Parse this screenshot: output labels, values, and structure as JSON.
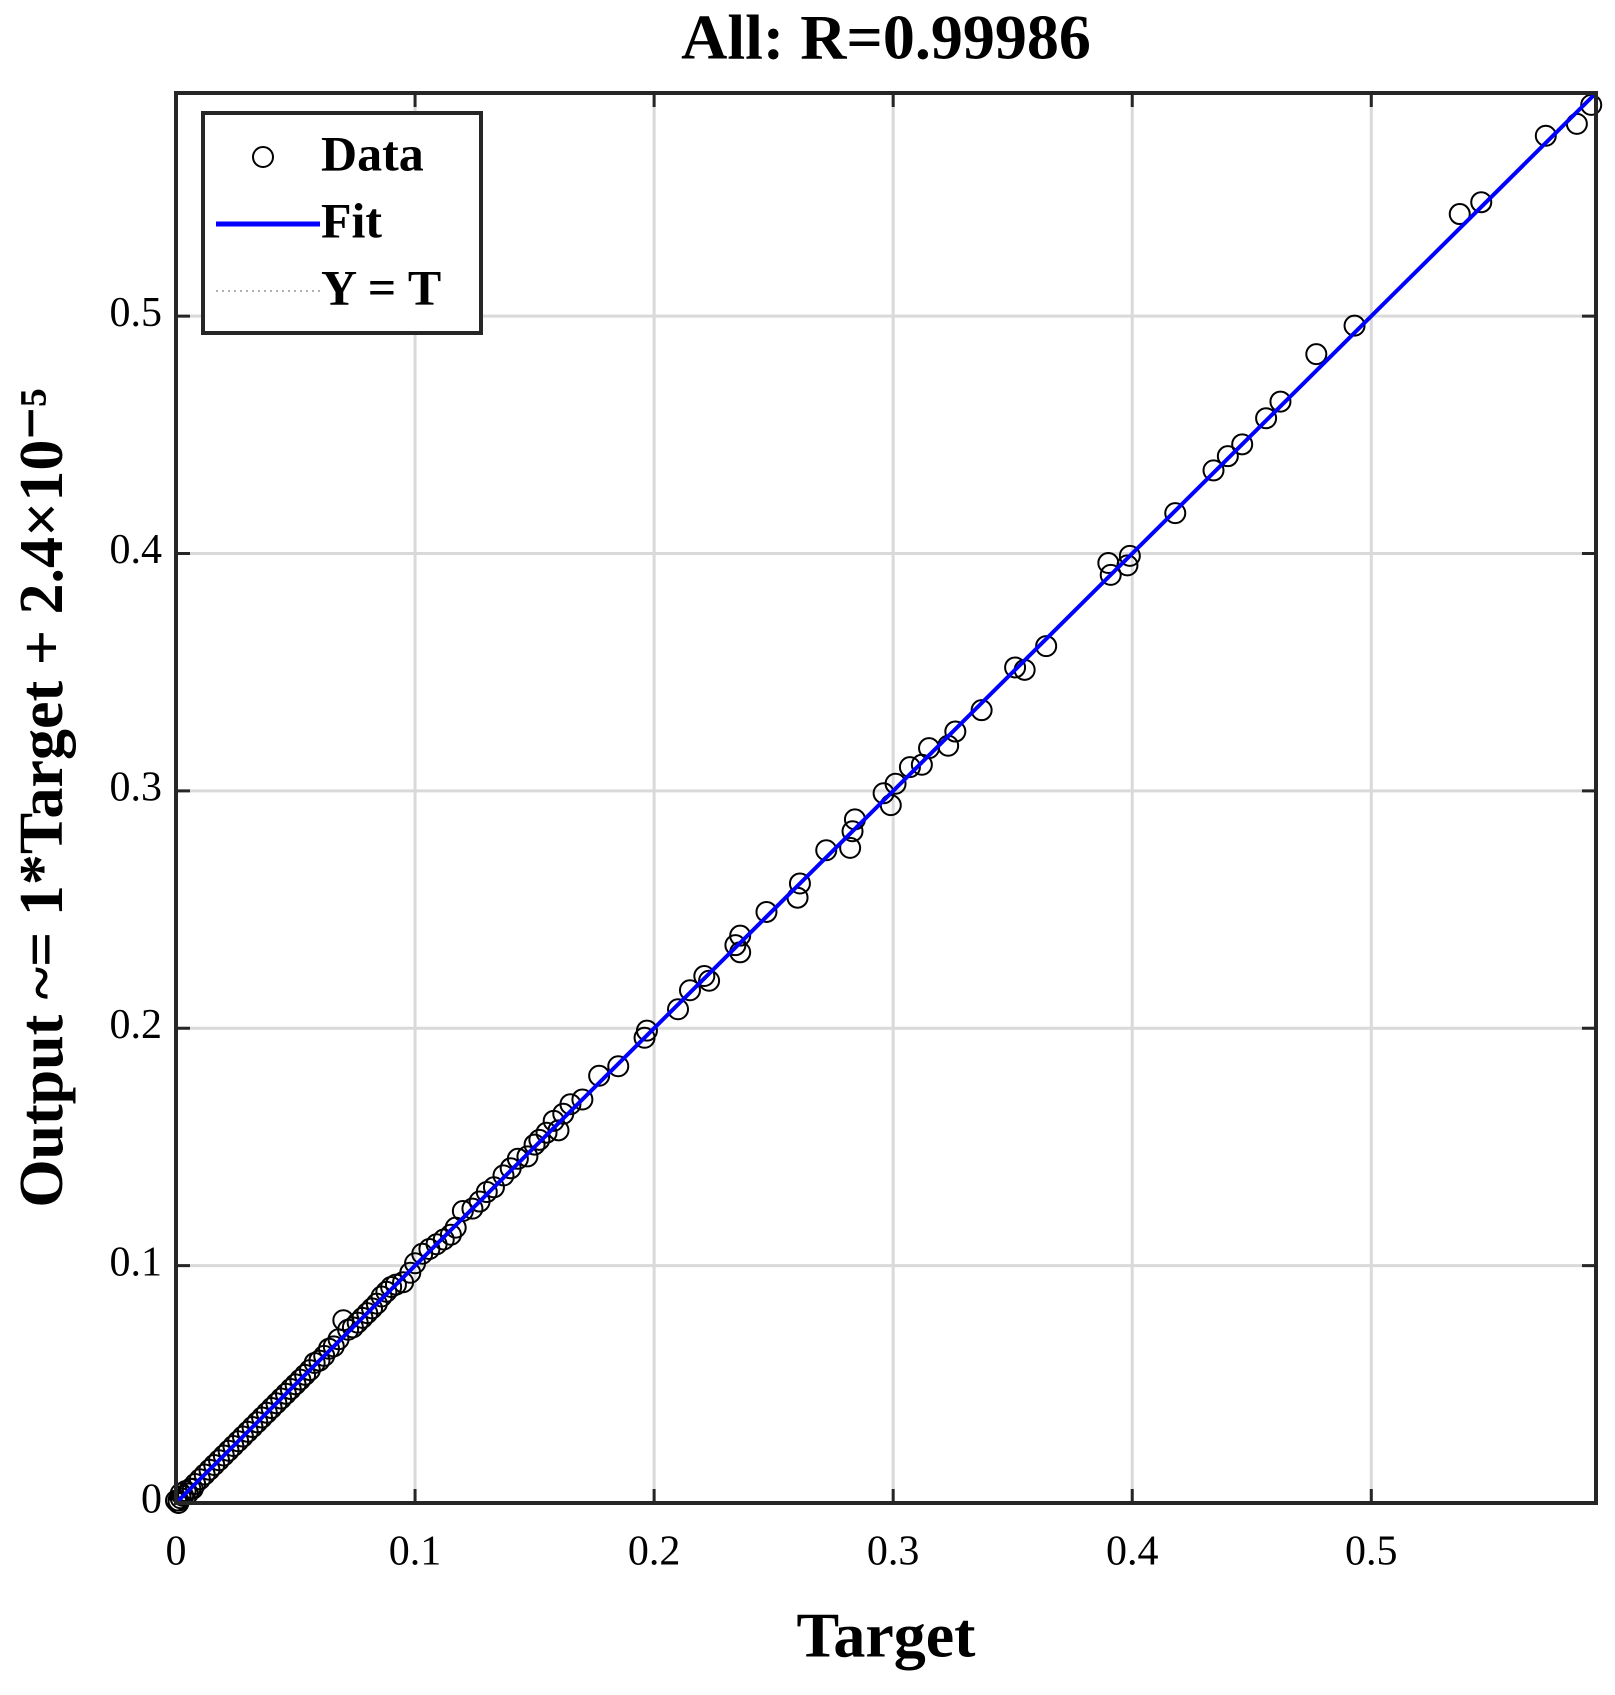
{
  "chart_data": {
    "type": "scatter",
    "title": "All: R=0.99986",
    "xlabel": "Target",
    "ylabel": "Output ~= 1*Target + 2.4×10⁻⁵",
    "xlim": [
      0,
      0.594
    ],
    "ylim": [
      0,
      0.594
    ],
    "xticks": [
      0,
      0.1,
      0.2,
      0.3,
      0.4,
      0.5
    ],
    "yticks": [
      0,
      0.1,
      0.2,
      0.3,
      0.4,
      0.5
    ],
    "grid": true,
    "legend": "upper-left",
    "series": [
      {
        "name": "Data",
        "color": "#000000",
        "style": "marker",
        "x": [
          0.592,
          0.586,
          0.573,
          0.546,
          0.537,
          0.493,
          0.477,
          0.462,
          0.456,
          0.446,
          0.44,
          0.434,
          0.418,
          0.399,
          0.398,
          0.391,
          0.39,
          0.364,
          0.355,
          0.351,
          0.337,
          0.326,
          0.323,
          0.315,
          0.312,
          0.307,
          0.301,
          0.299,
          0.296,
          0.284,
          0.283,
          0.282,
          0.272,
          0.261,
          0.26,
          0.247,
          0.236,
          0.236,
          0.234,
          0.223,
          0.221,
          0.215,
          0.21,
          0.197,
          0.196,
          0.185,
          0.177,
          0.17,
          0.165,
          0.162,
          0.16,
          0.158,
          0.155,
          0.152,
          0.15,
          0.147,
          0.143,
          0.14,
          0.137,
          0.133,
          0.13,
          0.127,
          0.124,
          0.12,
          0.117,
          0.115,
          0.112,
          0.109,
          0.106,
          0.103,
          0.1,
          0.098,
          0.095,
          0.092,
          0.09,
          0.088,
          0.086,
          0.084,
          0.082,
          0.08,
          0.078,
          0.076,
          0.074,
          0.072,
          0.07,
          0.068,
          0.066,
          0.064,
          0.062,
          0.06,
          0.058,
          0.056,
          0.054,
          0.052,
          0.05,
          0.048,
          0.046,
          0.044,
          0.042,
          0.04,
          0.038,
          0.036,
          0.034,
          0.032,
          0.03,
          0.028,
          0.026,
          0.024,
          0.022,
          0.02,
          0.018,
          0.016,
          0.014,
          0.012,
          0.01,
          0.008,
          0.006,
          0.004,
          0.003,
          0.002,
          0.001,
          0,
          0.001,
          0.002,
          0.005,
          0.007
        ],
        "values": [
          0.589,
          0.581,
          0.576,
          0.548,
          0.543,
          0.496,
          0.484,
          0.464,
          0.457,
          0.446,
          0.441,
          0.435,
          0.417,
          0.399,
          0.395,
          0.391,
          0.396,
          0.361,
          0.351,
          0.352,
          0.334,
          0.325,
          0.319,
          0.318,
          0.311,
          0.31,
          0.303,
          0.294,
          0.299,
          0.288,
          0.283,
          0.276,
          0.275,
          0.261,
          0.255,
          0.249,
          0.239,
          0.232,
          0.235,
          0.22,
          0.222,
          0.216,
          0.208,
          0.199,
          0.196,
          0.184,
          0.18,
          0.17,
          0.168,
          0.164,
          0.157,
          0.161,
          0.156,
          0.153,
          0.151,
          0.146,
          0.145,
          0.141,
          0.138,
          0.133,
          0.131,
          0.127,
          0.124,
          0.123,
          0.116,
          0.113,
          0.111,
          0.109,
          0.107,
          0.105,
          0.101,
          0.097,
          0.093,
          0.092,
          0.091,
          0.089,
          0.087,
          0.084,
          0.082,
          0.08,
          0.078,
          0.076,
          0.074,
          0.073,
          0.077,
          0.069,
          0.066,
          0.065,
          0.062,
          0.06,
          0.059,
          0.056,
          0.054,
          0.052,
          0.05,
          0.048,
          0.046,
          0.044,
          0.042,
          0.04,
          0.038,
          0.036,
          0.034,
          0.032,
          0.03,
          0.028,
          0.026,
          0.024,
          0.022,
          0.02,
          0.018,
          0.016,
          0.014,
          0.012,
          0.01,
          0.008,
          0.006,
          0.005,
          0.003,
          0.002,
          0.001,
          0.001,
          0,
          0.004,
          0.004,
          0.006
        ]
      },
      {
        "name": "Fit",
        "color": "#0000ff",
        "style": "line",
        "x": [
          0,
          0.594
        ],
        "values": [
          0,
          0.594
        ]
      },
      {
        "name": "Y = T",
        "color": "#b0b0b0",
        "style": "dotted",
        "x": [
          0,
          0.594
        ],
        "values": [
          0,
          0.594
        ]
      }
    ]
  }
}
